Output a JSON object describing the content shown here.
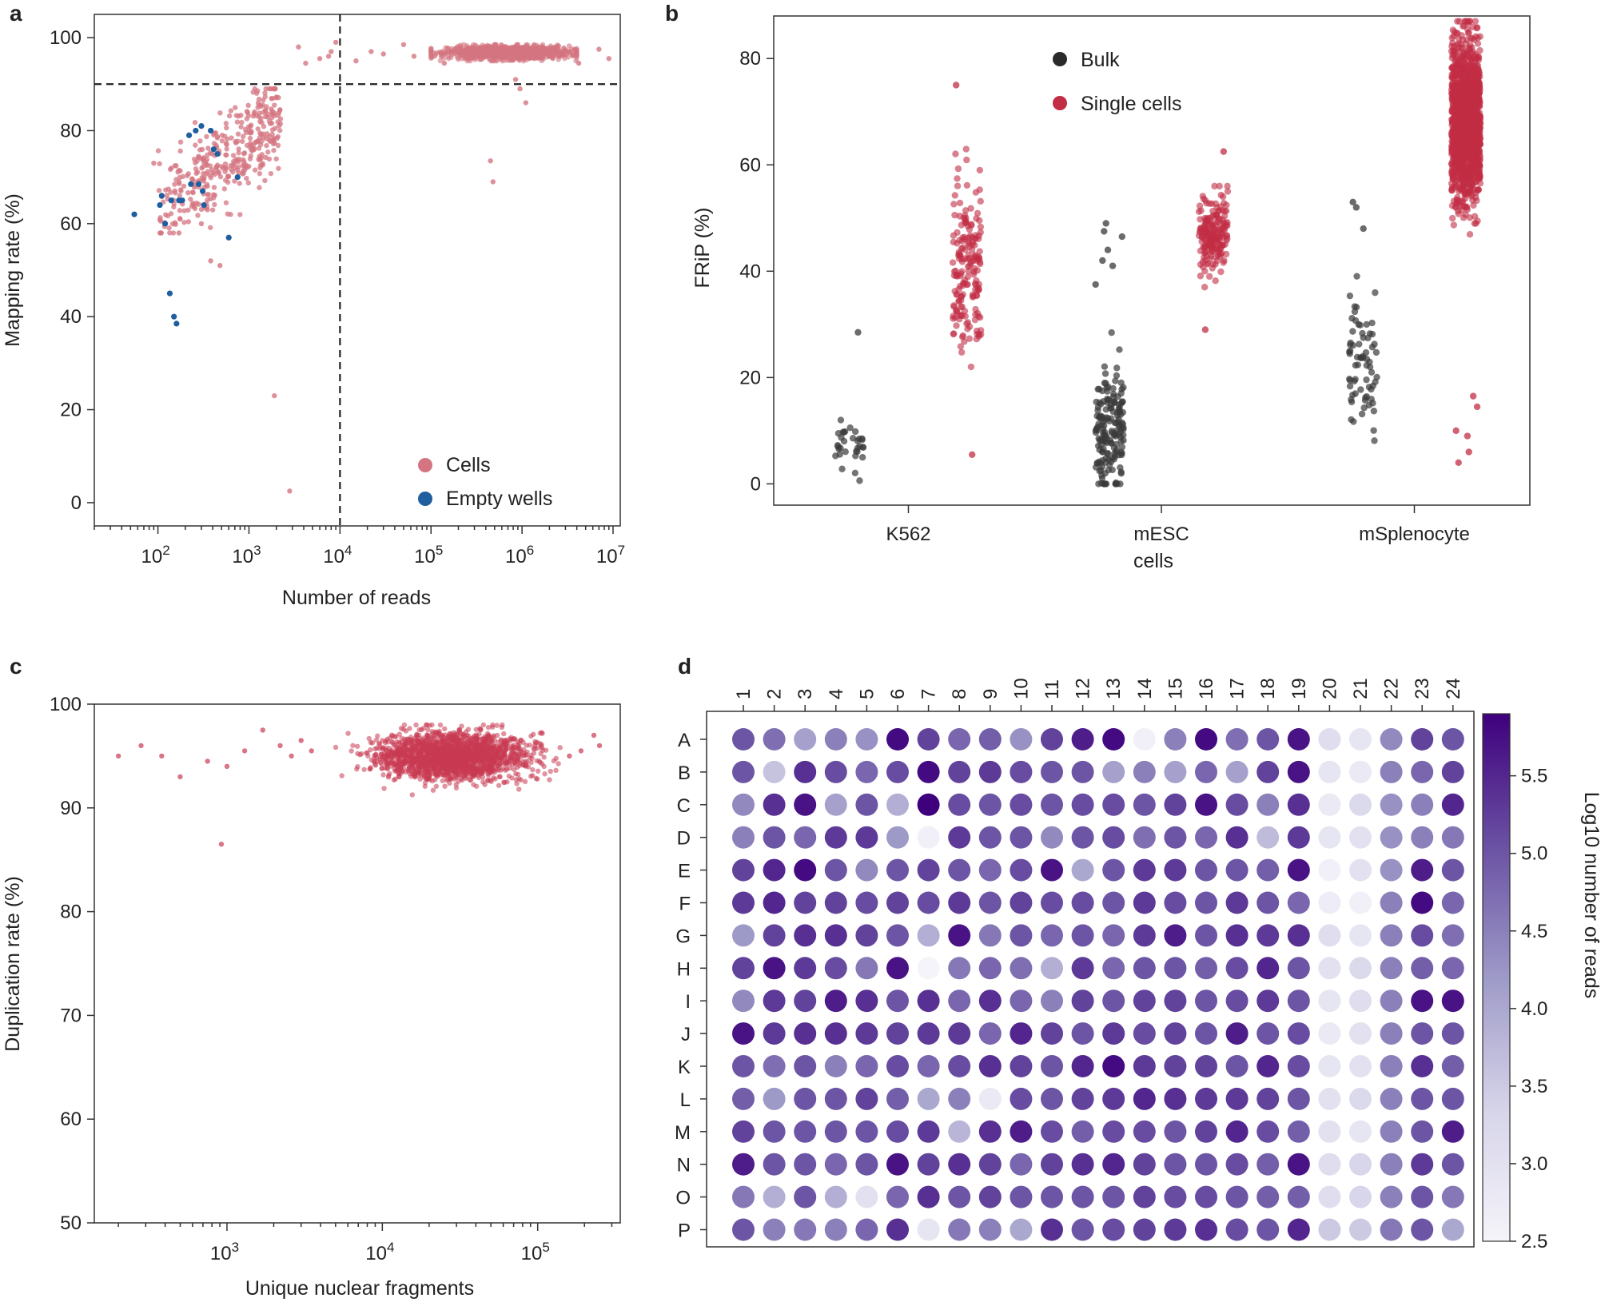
{
  "figure": {
    "panels": [
      "a",
      "b",
      "c",
      "d"
    ]
  },
  "colors": {
    "cells": "#d47581",
    "single_cells": "#c22d45",
    "dup_points": "#c83a52",
    "bulk": "#3a3a3a",
    "empty_wells": "#1f5fa0",
    "cmap_low": "#f5f4fa",
    "cmap_high": "#3f007d"
  },
  "chart_data": [
    {
      "panel": "a",
      "type": "scatter",
      "xlabel": "Number of reads",
      "ylabel": "Mapping rate (%)",
      "xscale": "log",
      "xlim": [
        20,
        12000000
      ],
      "ylim": [
        -5,
        105
      ],
      "xticks": [
        {
          "value": 100,
          "base": "10",
          "exp": "2"
        },
        {
          "value": 1000,
          "base": "10",
          "exp": "3"
        },
        {
          "value": 10000,
          "base": "10",
          "exp": "4"
        },
        {
          "value": 100000,
          "base": "10",
          "exp": "5"
        },
        {
          "value": 1000000,
          "base": "10",
          "exp": "6"
        },
        {
          "value": 10000000,
          "base": "10",
          "exp": "7"
        }
      ],
      "yticks": [
        "0",
        "20",
        "40",
        "60",
        "80",
        "100"
      ],
      "threshold_x": 10000,
      "threshold_y": 90,
      "legend": [
        {
          "label": "Cells",
          "series": "cells"
        },
        {
          "label": "Empty wells",
          "series": "empty"
        }
      ],
      "legend_position": "lower-right",
      "empty_wells": [
        [
          55,
          62
        ],
        [
          110,
          66
        ],
        [
          105,
          64
        ],
        [
          120,
          60
        ],
        [
          140,
          65
        ],
        [
          170,
          65
        ],
        [
          185,
          65
        ],
        [
          220,
          79
        ],
        [
          260,
          80
        ],
        [
          300,
          81
        ],
        [
          230,
          68.5
        ],
        [
          280,
          68.5
        ],
        [
          310,
          67
        ],
        [
          320,
          64
        ],
        [
          380,
          80
        ],
        [
          410,
          76
        ],
        [
          450,
          75
        ],
        [
          750,
          70
        ],
        [
          600,
          57
        ],
        [
          135,
          45
        ],
        [
          150,
          40
        ],
        [
          160,
          38.5
        ]
      ],
      "cells_low_outliers": [
        [
          1900,
          23
        ],
        [
          2800,
          2.5
        ],
        [
          380,
          52
        ],
        [
          480,
          51
        ],
        [
          170,
          58
        ],
        [
          90,
          73
        ],
        [
          300,
          60
        ],
        [
          700,
          72
        ],
        [
          350,
          63
        ]
      ],
      "cells_top_outliers": [
        [
          3500,
          98
        ],
        [
          4200,
          94.5
        ],
        [
          6000,
          95.5
        ],
        [
          7500,
          96
        ],
        [
          9000,
          99
        ],
        [
          8000,
          97
        ],
        [
          15000,
          95
        ],
        [
          22000,
          97
        ],
        [
          30000,
          96.5
        ],
        [
          50000,
          98.5
        ],
        [
          65000,
          96
        ],
        [
          450000,
          73.5
        ],
        [
          480000,
          69
        ],
        [
          850000,
          91
        ],
        [
          950000,
          89
        ],
        [
          1100000,
          86
        ],
        [
          9000000,
          95.5
        ],
        [
          7000000,
          97.5
        ],
        [
          4200000,
          94.5
        ],
        [
          140000,
          94.5
        ]
      ],
      "note": "Cells cluster: ~380 points between 1e2-2.5e3 reads with 60-88% mapping, and a dense band of ~1200 points between 1e5-4e6 reads at 95-98% mapping."
    },
    {
      "panel": "b",
      "type": "scatter",
      "xlabel": "cells",
      "ylabel": "FRiP (%)",
      "ylim": [
        -4,
        88
      ],
      "yticks": [
        "0",
        "20",
        "40",
        "60",
        "80"
      ],
      "categories": [
        "K562",
        "mESC",
        "mSplenocyte"
      ],
      "series": [
        {
          "name": "Bulk",
          "groups": [
            {
              "category": "K562",
              "n": 32,
              "range": [
                0.5,
                12
              ],
              "center": 6,
              "outliers": [
                28.5
              ]
            },
            {
              "category": "mESC",
              "n": 170,
              "range": [
                0,
                31
              ],
              "center": 9,
              "outliers": [
                49,
                47.5,
                46.5,
                44,
                42,
                41,
                37.5
              ]
            },
            {
              "category": "mSplenocyte",
              "n": 70,
              "range": [
                7.5,
                43
              ],
              "center": 22,
              "outliers": [
                53,
                52,
                48
              ]
            }
          ]
        },
        {
          "name": "Single cells",
          "groups": [
            {
              "category": "K562",
              "n": 180,
              "range": [
                22,
                64
              ],
              "center": 41,
              "outliers": [
                75,
                5.5
              ]
            },
            {
              "category": "mESC",
              "n": 190,
              "range": [
                37,
                56
              ],
              "center": 47,
              "outliers": [
                62.5,
                29
              ]
            },
            {
              "category": "mSplenocyte",
              "n": 1500,
              "range": [
                4,
                87
              ],
              "center": 68,
              "outliers": [
                16.5,
                14.5,
                10,
                9,
                6,
                4
              ]
            }
          ]
        }
      ],
      "legend": [
        {
          "label": "Bulk",
          "series": "bulk"
        },
        {
          "label": "Single cells",
          "series": "single"
        }
      ],
      "legend_position": "upper-center"
    },
    {
      "panel": "c",
      "type": "scatter",
      "xlabel": "Unique nuclear fragments",
      "ylabel": "Duplication rate (%)",
      "xscale": "log",
      "xlim": [
        140,
        340000
      ],
      "ylim": [
        50,
        100
      ],
      "yticks": [
        "50",
        "60",
        "70",
        "80",
        "90",
        "100"
      ],
      "xticks": [
        {
          "value": 1000,
          "base": "10",
          "exp": "3"
        },
        {
          "value": 10000,
          "base": "10",
          "exp": "4"
        },
        {
          "value": 100000,
          "base": "10",
          "exp": "5"
        }
      ],
      "outliers": [
        [
          200,
          95
        ],
        [
          280,
          96
        ],
        [
          380,
          95
        ],
        [
          500,
          93
        ],
        [
          750,
          94.5
        ],
        [
          920,
          86.5
        ],
        [
          1000,
          94
        ],
        [
          1300,
          95.5
        ],
        [
          1700,
          97.5
        ],
        [
          2200,
          96
        ],
        [
          2600,
          95
        ],
        [
          3000,
          96.5
        ],
        [
          3500,
          95.5
        ],
        [
          230000,
          97
        ],
        [
          250000,
          96
        ],
        [
          190000,
          95.5
        ],
        [
          160000,
          95
        ]
      ],
      "note": "Dense cluster of ~2000 points spanning 5e3-1.5e5 fragments, centered near 3e4 fragments at ~95% duplication (range ~91-98%)."
    },
    {
      "panel": "d",
      "type": "heatmap",
      "columns": [
        "1",
        "2",
        "3",
        "4",
        "5",
        "6",
        "7",
        "8",
        "9",
        "10",
        "11",
        "12",
        "13",
        "14",
        "15",
        "16",
        "17",
        "18",
        "19",
        "20",
        "21",
        "22",
        "23",
        "24"
      ],
      "rows": [
        "A",
        "B",
        "C",
        "D",
        "E",
        "F",
        "G",
        "H",
        "I",
        "J",
        "K",
        "L",
        "M",
        "N",
        "O",
        "P"
      ],
      "colorbar_label": "Log10 number of reads",
      "colorbar_range": [
        2.5,
        5.9
      ],
      "colorbar_ticks": [
        "2.5",
        "3.0",
        "3.5",
        "4.0",
        "4.5",
        "5.0",
        "5.5"
      ],
      "values": [
        [
          5.0,
          4.7,
          4.1,
          4.5,
          4.3,
          5.8,
          5.2,
          4.8,
          4.9,
          4.3,
          5.2,
          5.6,
          5.8,
          2.6,
          4.5,
          5.8,
          4.7,
          5.0,
          5.7,
          3.1,
          2.9,
          4.4,
          5.2,
          5.0
        ],
        [
          5.0,
          3.6,
          5.4,
          5.1,
          4.8,
          5.1,
          5.8,
          5.2,
          5.3,
          5.1,
          5.0,
          5.0,
          4.1,
          4.5,
          4.1,
          4.8,
          4.1,
          5.2,
          5.7,
          2.9,
          2.8,
          4.5,
          4.8,
          5.2
        ],
        [
          4.4,
          5.4,
          5.7,
          4.1,
          5.0,
          3.9,
          5.9,
          5.1,
          5.0,
          5.1,
          5.0,
          5.1,
          5.1,
          5.0,
          5.2,
          5.7,
          5.1,
          4.5,
          5.4,
          2.8,
          3.2,
          4.3,
          4.5,
          5.5
        ],
        [
          4.5,
          5.0,
          4.8,
          5.3,
          5.3,
          4.2,
          2.6,
          5.3,
          5.0,
          5.0,
          4.4,
          5.0,
          5.1,
          4.7,
          5.0,
          4.8,
          5.4,
          3.7,
          5.3,
          2.9,
          3.0,
          4.3,
          4.5,
          4.6
        ],
        [
          5.2,
          5.5,
          5.8,
          5.0,
          4.4,
          5.0,
          5.2,
          5.0,
          4.8,
          5.1,
          5.7,
          4.0,
          5.0,
          5.3,
          5.3,
          5.0,
          5.0,
          4.9,
          5.7,
          2.6,
          3.0,
          4.3,
          5.6,
          5.0
        ],
        [
          5.3,
          5.5,
          5.2,
          5.2,
          5.1,
          5.2,
          5.1,
          5.3,
          5.0,
          5.2,
          5.1,
          5.1,
          5.0,
          5.3,
          5.1,
          5.0,
          5.3,
          5.0,
          4.8,
          2.7,
          2.6,
          4.5,
          5.8,
          4.8
        ],
        [
          4.2,
          5.2,
          5.4,
          5.4,
          5.2,
          5.0,
          3.9,
          5.7,
          4.6,
          5.0,
          4.8,
          5.0,
          4.8,
          5.3,
          5.6,
          5.0,
          5.4,
          5.3,
          5.4,
          3.1,
          2.9,
          4.5,
          5.1,
          4.7
        ],
        [
          5.2,
          5.7,
          5.3,
          5.1,
          4.6,
          5.7,
          2.5,
          4.6,
          4.8,
          4.7,
          3.9,
          5.3,
          4.8,
          5.0,
          5.0,
          4.9,
          5.1,
          5.5,
          5.0,
          3.0,
          3.2,
          4.5,
          4.9,
          4.8
        ],
        [
          4.4,
          5.3,
          5.2,
          5.6,
          5.4,
          5.0,
          5.4,
          4.8,
          5.4,
          4.8,
          4.5,
          5.2,
          5.0,
          5.2,
          5.2,
          5.0,
          5.1,
          5.3,
          5.0,
          2.9,
          3.1,
          4.5,
          5.7,
          5.7
        ],
        [
          5.7,
          5.3,
          5.4,
          5.4,
          5.3,
          5.2,
          5.3,
          5.3,
          4.8,
          5.5,
          5.2,
          5.0,
          5.3,
          5.1,
          5.2,
          5.0,
          5.6,
          5.0,
          5.1,
          2.8,
          3.0,
          4.5,
          5.0,
          5.0
        ],
        [
          5.0,
          4.7,
          5.0,
          4.5,
          4.8,
          5.1,
          4.8,
          5.1,
          5.4,
          5.2,
          5.0,
          5.5,
          5.8,
          5.3,
          5.2,
          5.2,
          5.0,
          5.5,
          5.1,
          2.9,
          3.0,
          4.5,
          5.4,
          4.9
        ],
        [
          4.9,
          4.2,
          5.0,
          5.0,
          5.2,
          4.9,
          4.0,
          4.5,
          2.8,
          5.1,
          5.0,
          5.2,
          5.3,
          5.5,
          5.4,
          5.3,
          5.3,
          5.2,
          5.0,
          3.0,
          3.2,
          4.5,
          5.0,
          5.0
        ],
        [
          5.2,
          5.0,
          5.0,
          5.0,
          5.0,
          5.1,
          5.3,
          3.8,
          5.4,
          5.6,
          5.1,
          4.9,
          5.1,
          5.1,
          5.0,
          5.2,
          5.5,
          5.1,
          4.9,
          3.0,
          2.9,
          4.5,
          5.0,
          5.6
        ],
        [
          5.6,
          5.0,
          5.0,
          4.8,
          5.0,
          5.7,
          5.2,
          5.4,
          5.2,
          4.8,
          5.2,
          5.4,
          5.5,
          5.2,
          5.0,
          5.0,
          5.1,
          4.9,
          5.7,
          3.1,
          3.3,
          4.5,
          5.3,
          5.0
        ],
        [
          4.6,
          3.9,
          5.0,
          3.9,
          3.0,
          4.8,
          5.4,
          5.0,
          5.2,
          5.0,
          5.0,
          5.0,
          5.0,
          5.2,
          5.1,
          5.1,
          5.0,
          4.9,
          4.9,
          3.1,
          3.3,
          4.5,
          5.0,
          4.6
        ],
        [
          5.0,
          4.5,
          4.6,
          4.5,
          4.8,
          5.4,
          2.9,
          4.6,
          4.5,
          4.0,
          5.4,
          5.0,
          5.1,
          5.2,
          5.3,
          5.4,
          5.1,
          5.0,
          5.5,
          3.5,
          3.5,
          4.6,
          5.0,
          4.0
        ]
      ]
    }
  ]
}
